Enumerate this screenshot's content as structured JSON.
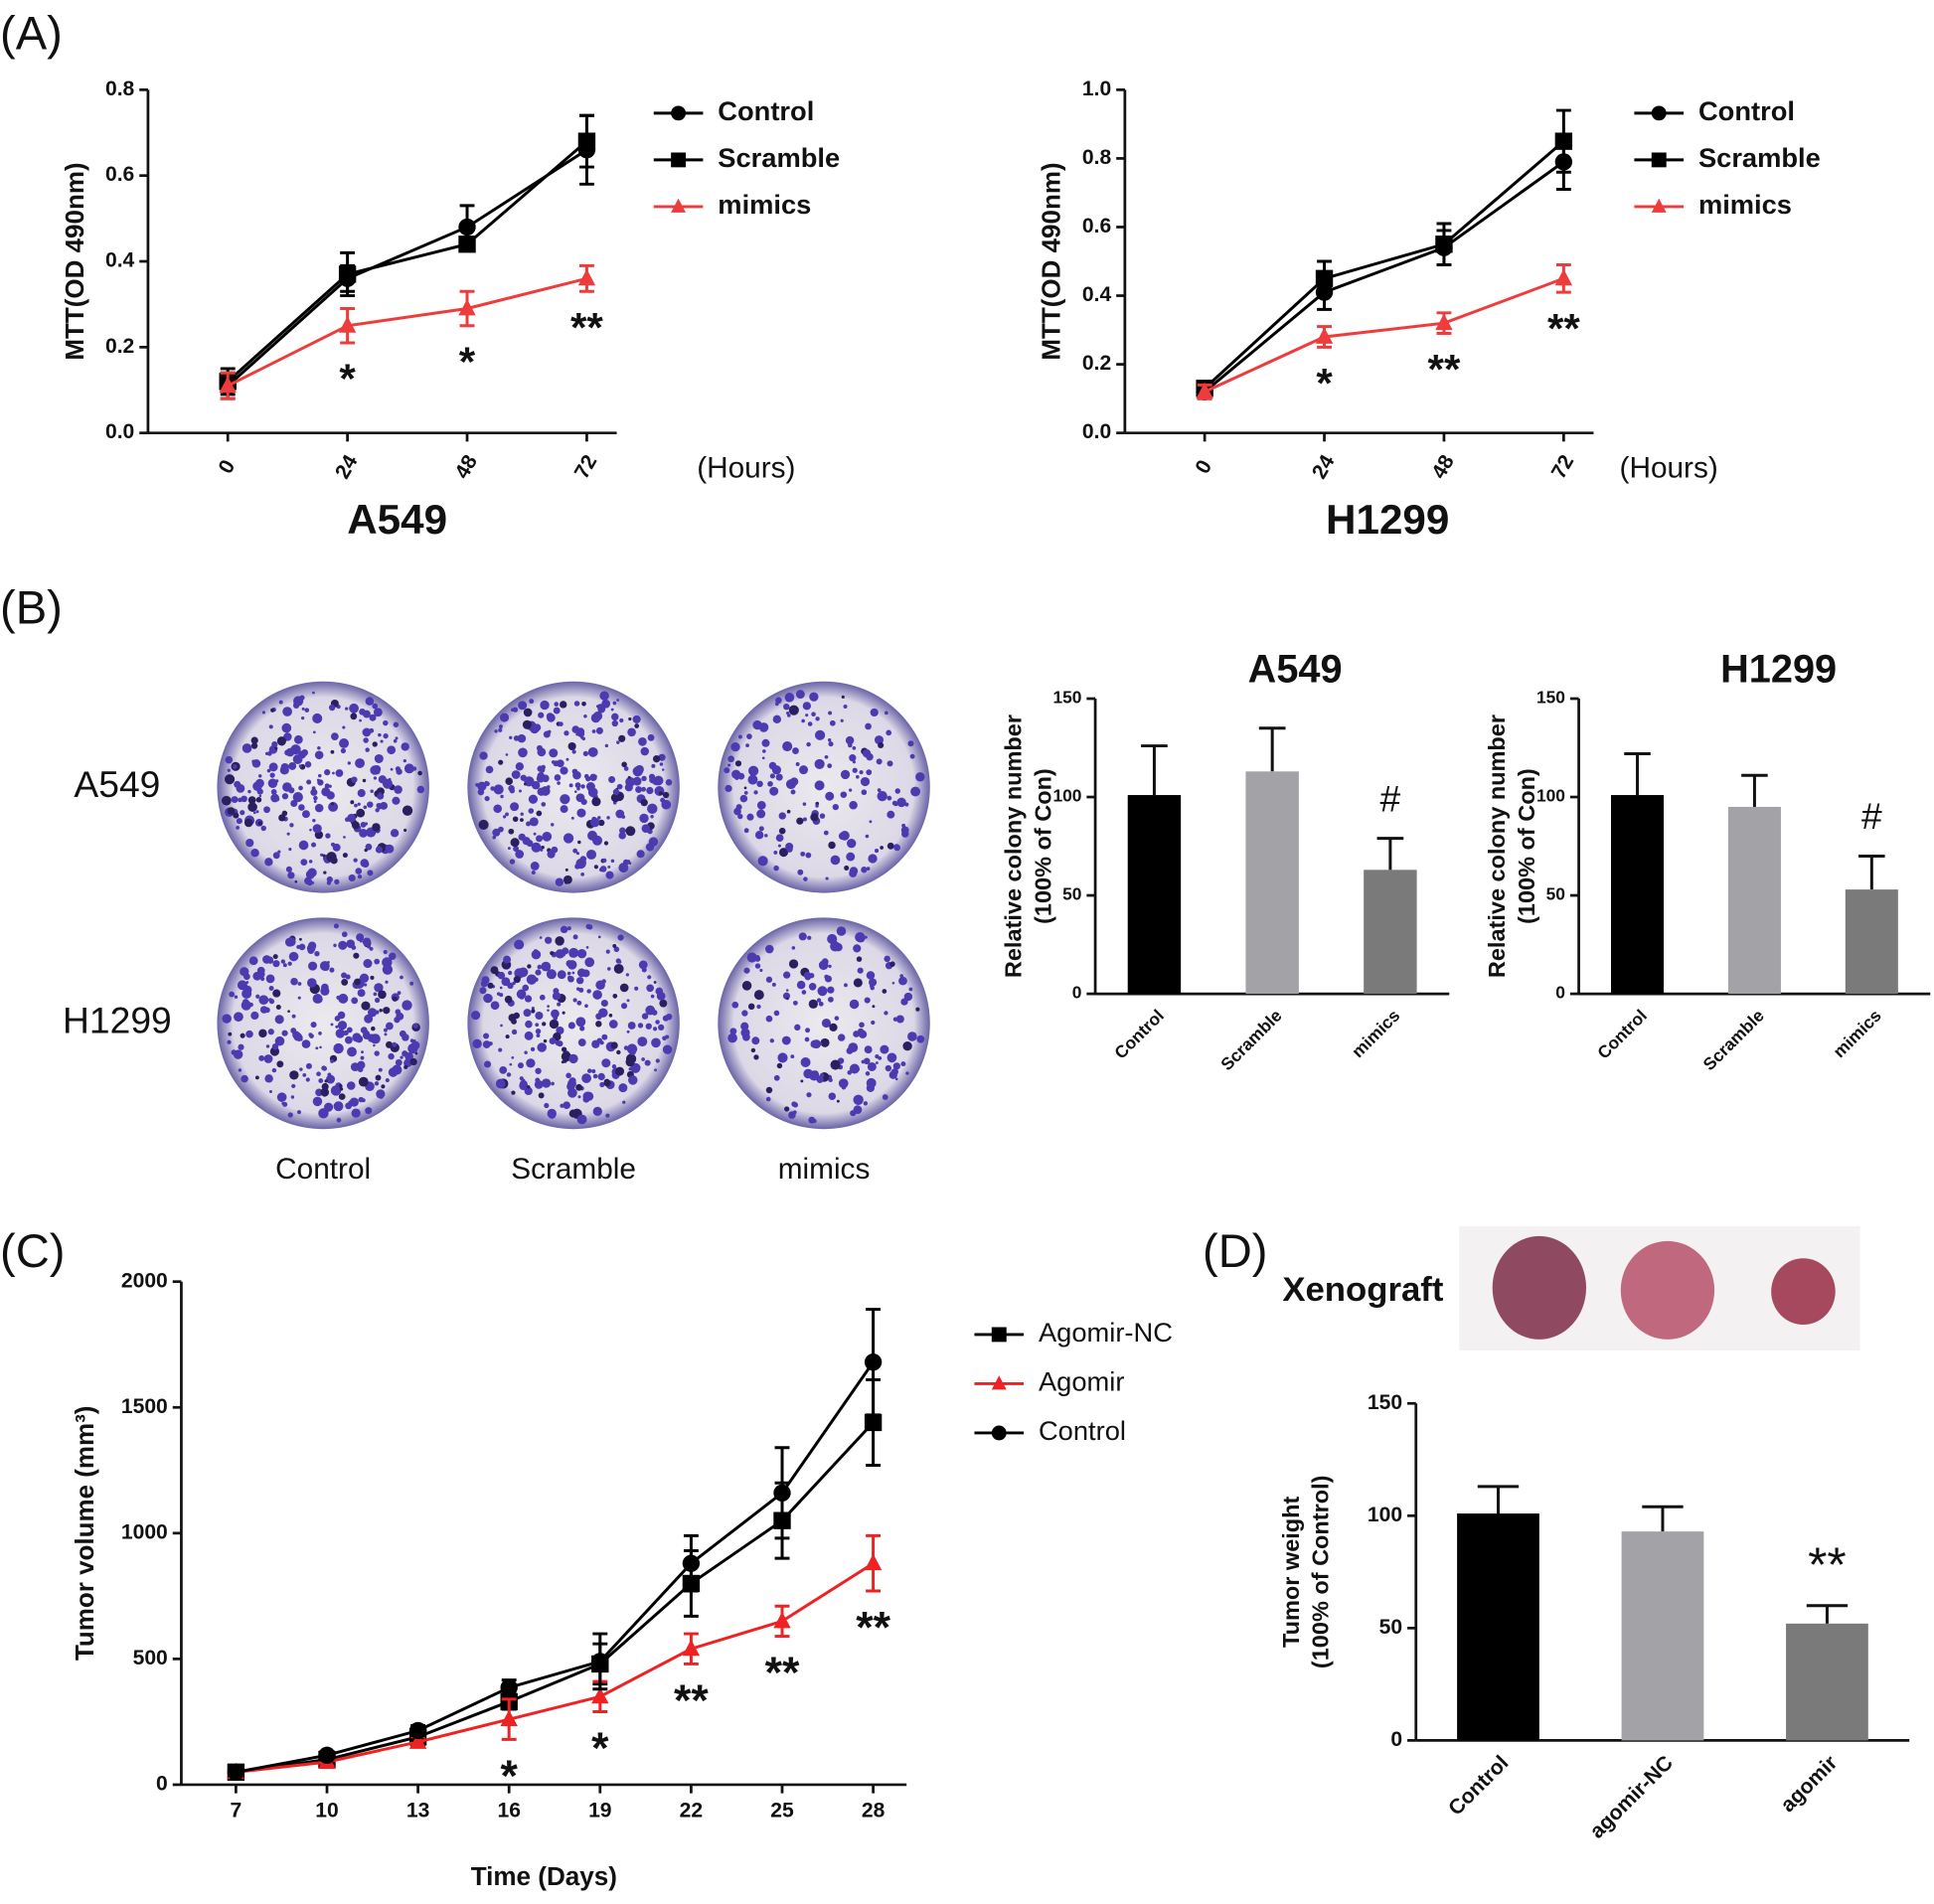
{
  "panel_labels": [
    "(A)",
    "(B)",
    "(C)",
    "(D)"
  ],
  "colony_image": {
    "rows": [
      "A549",
      "H1299"
    ],
    "columns": [
      "Control",
      "Scramble",
      "mimics"
    ]
  },
  "xenograft": {
    "label": "Xenograft"
  },
  "chart_data": [
    {
      "type": "line",
      "title": "A549",
      "ylabel": [
        "MTT(OD 490nm)"
      ],
      "xlabel": "(Hours)",
      "x": [
        0,
        24,
        48,
        72
      ],
      "xlim": [
        -16,
        78
      ],
      "xticks": [
        0,
        24,
        48,
        72
      ],
      "ylim": [
        0,
        0.8
      ],
      "yticks": [
        {
          "value": 0,
          "label": "0.0"
        },
        0.2,
        0.4,
        0.6,
        0.8
      ],
      "series": [
        {
          "name": "Control",
          "color": "#000000",
          "marker": "circle",
          "values": [
            0.11,
            0.36,
            0.48,
            0.66
          ],
          "errors": [
            0.03,
            0.03,
            0.05,
            0.08
          ]
        },
        {
          "name": "Scramble",
          "color": "#000000",
          "marker": "square",
          "values": [
            0.12,
            0.37,
            0.44,
            0.68
          ],
          "errors": [
            0.03,
            0.05,
            0.01,
            0.06
          ]
        },
        {
          "name": "mimics",
          "color": "#ee3b3b",
          "marker": "triangle",
          "values": [
            0.11,
            0.25,
            0.29,
            0.36
          ],
          "errors": [
            0.03,
            0.04,
            0.04,
            0.03
          ]
        }
      ],
      "annotations": [
        {
          "x": 24,
          "text": "*"
        },
        {
          "x": 48,
          "text": "*"
        },
        {
          "x": 72,
          "text": "**"
        }
      ]
    },
    {
      "type": "line",
      "title": "H1299",
      "ylabel": [
        "MTT(OD 490nm)"
      ],
      "xlabel": "(Hours)",
      "x": [
        0,
        24,
        48,
        72
      ],
      "xlim": [
        -16,
        78
      ],
      "xticks": [
        0,
        24,
        48,
        72
      ],
      "ylim": [
        0,
        1.0
      ],
      "yticks": [
        {
          "value": 0,
          "label": "0.0"
        },
        0.2,
        0.4,
        0.6,
        0.8,
        {
          "value": 1.0,
          "label": "1.0"
        }
      ],
      "series": [
        {
          "name": "Control",
          "color": "#000000",
          "marker": "circle",
          "values": [
            0.12,
            0.41,
            0.54,
            0.79
          ],
          "errors": [
            0.02,
            0.05,
            0.05,
            0.08
          ]
        },
        {
          "name": "Scramble",
          "color": "#000000",
          "marker": "square",
          "values": [
            0.13,
            0.45,
            0.55,
            0.85
          ],
          "errors": [
            0.02,
            0.05,
            0.06,
            0.09
          ]
        },
        {
          "name": "mimics",
          "color": "#ee3b3b",
          "marker": "triangle",
          "values": [
            0.12,
            0.28,
            0.32,
            0.45
          ],
          "errors": [
            0.02,
            0.03,
            0.03,
            0.04
          ]
        }
      ],
      "annotations": [
        {
          "x": 24,
          "text": "*"
        },
        {
          "x": 48,
          "text": "**"
        },
        {
          "x": 72,
          "text": "**"
        }
      ]
    },
    {
      "type": "bar",
      "title": "A549",
      "ylabel": [
        "Relative colony number",
        "(100% of Con)"
      ],
      "categories": [
        "Control",
        "Scramble",
        "mimics"
      ],
      "values": [
        101,
        113,
        63
      ],
      "errors": [
        25,
        22,
        16
      ],
      "colors": [
        "#000000",
        "#a3a3a7",
        "#7a7a7a"
      ],
      "ylim": [
        0,
        150
      ],
      "yticks": [
        0,
        50,
        100,
        150
      ],
      "annotations": [
        {
          "category": "mimics",
          "text": "#"
        }
      ]
    },
    {
      "type": "bar",
      "title": "H1299",
      "ylabel": [
        "Relative colony number",
        "(100% of Con)"
      ],
      "categories": [
        "Control",
        "Scramble",
        "mimics"
      ],
      "values": [
        101,
        95,
        53
      ],
      "errors": [
        21,
        16,
        17
      ],
      "colors": [
        "#000000",
        "#a3a3a7",
        "#7a7a7a"
      ],
      "ylim": [
        0,
        150
      ],
      "yticks": [
        0,
        50,
        100,
        150
      ],
      "annotations": [
        {
          "category": "mimics",
          "text": "#"
        }
      ]
    },
    {
      "type": "line",
      "ylabel": [
        "Tumor volume (mm³)"
      ],
      "xlabel": "Time (Days)",
      "x": [
        7,
        10,
        13,
        16,
        19,
        22,
        25,
        28
      ],
      "xlim": [
        5.2,
        29.1
      ],
      "xticks": [
        7,
        10,
        13,
        16,
        19,
        22,
        25,
        28
      ],
      "ylim": [
        0,
        2000
      ],
      "yticks": [
        0,
        500,
        1000,
        1500,
        2000
      ],
      "series": [
        {
          "name": "Agomir-NC",
          "color": "#000000",
          "marker": "square",
          "values": [
            50,
            100,
            190,
            330,
            480,
            800,
            1050,
            1440
          ],
          "errors": [
            10,
            15,
            20,
            30,
            80,
            130,
            150,
            170
          ]
        },
        {
          "name": "Agomir",
          "color": "#ee2222",
          "marker": "triangle",
          "values": [
            50,
            90,
            170,
            260,
            350,
            540,
            650,
            880
          ],
          "errors": [
            10,
            15,
            20,
            80,
            60,
            60,
            60,
            110
          ]
        },
        {
          "name": "Control",
          "color": "#000000",
          "marker": "circle",
          "values": [
            50,
            117,
            215,
            386,
            490,
            880,
            1160,
            1680
          ],
          "errors": [
            10,
            15,
            20,
            30,
            110,
            110,
            180,
            210
          ]
        }
      ],
      "annotations": [
        {
          "x": 16,
          "text": "*"
        },
        {
          "x": 19,
          "text": "*"
        },
        {
          "x": 22,
          "text": "**"
        },
        {
          "x": 25,
          "text": "**"
        },
        {
          "x": 28,
          "text": "**"
        }
      ]
    },
    {
      "type": "bar",
      "ylabel": [
        "Tumor weight",
        "(100% of Control)"
      ],
      "categories": [
        "Control",
        "agomir-NC",
        "agomir"
      ],
      "values": [
        101,
        93,
        52
      ],
      "errors": [
        12,
        11,
        8
      ],
      "colors": [
        "#000000",
        "#a3a3a7",
        "#7a7a7a"
      ],
      "ylim": [
        0,
        150
      ],
      "yticks": [
        0,
        50,
        100,
        150
      ],
      "annotations": [
        {
          "category": "agomir",
          "text": "**"
        }
      ]
    }
  ]
}
